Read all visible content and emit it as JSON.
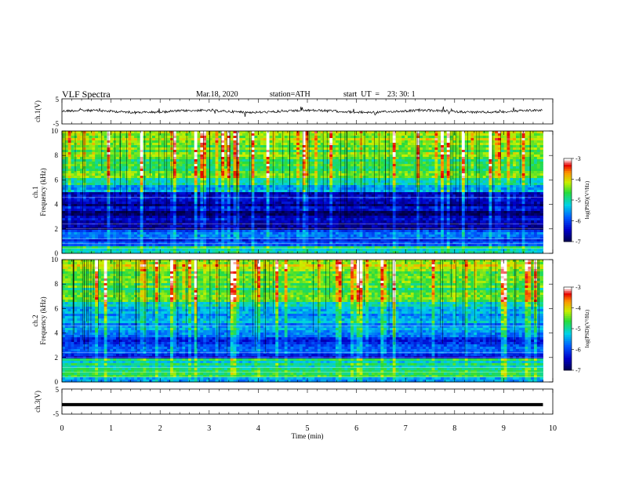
{
  "header": {
    "title": "VLF  Spectra",
    "date": "Mar.18, 2020",
    "station": "station=ATH",
    "start": "start  UT  =    23: 30: 1"
  },
  "chart_data": [
    {
      "type": "line",
      "name": "ch1-waveform",
      "ylabel": "ch.1(V)",
      "ylim": [
        -5,
        5
      ],
      "yticks": [
        "5",
        "-5"
      ],
      "xlim": [
        0,
        10
      ],
      "level": 0
    },
    {
      "type": "heatmap",
      "name": "ch1-spectrogram",
      "ylabel_top": "ch.1",
      "ylabel": "Frequency (kHz)",
      "ylim": [
        0,
        10
      ],
      "yticks": [
        "0",
        "2",
        "4",
        "6",
        "8",
        "10"
      ],
      "xlim": [
        0,
        9.8
      ],
      "colorbar": {
        "label": "log(PSD)(V²/Hz)",
        "range": [
          -7,
          -3
        ],
        "ticks": [
          "-3",
          "-4",
          "-5",
          "-6",
          "-7"
        ]
      }
    },
    {
      "type": "heatmap",
      "name": "ch2-spectrogram",
      "ylabel_top": "ch.2",
      "ylabel": "Frequency (kHz)",
      "ylim": [
        0,
        10
      ],
      "yticks": [
        "0",
        "2",
        "4",
        "6",
        "8",
        "10"
      ],
      "xlim": [
        0,
        9.8
      ],
      "colorbar": {
        "label": "log(PSD)(V²/Hz)",
        "range": [
          -7,
          -3
        ],
        "ticks": [
          "-3",
          "-4",
          "-5",
          "-6",
          "-7"
        ]
      }
    },
    {
      "type": "line",
      "name": "ch3-waveform",
      "ylabel": "ch.3(V)",
      "ylim": [
        -5,
        5
      ],
      "yticks": [
        "5",
        "-5"
      ],
      "xlim": [
        0,
        10
      ],
      "level": -1.2
    }
  ],
  "xaxis": {
    "label": "Time  (min)",
    "ticks": [
      "0",
      "1",
      "2",
      "3",
      "4",
      "5",
      "6",
      "7",
      "8",
      "9",
      "10"
    ],
    "range": [
      0,
      10
    ]
  }
}
